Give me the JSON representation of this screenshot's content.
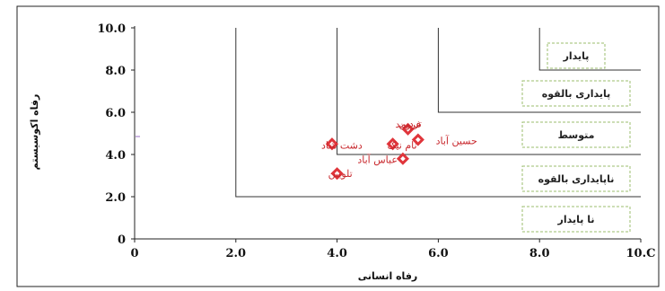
{
  "chart_data": {
    "type": "scatter",
    "xlabel": "رفاه انسانی",
    "ylabel": "رفاه اکوسیستم",
    "xlim": [
      0,
      10
    ],
    "ylim": [
      0,
      10
    ],
    "x_ticks": [
      "0",
      "2.0",
      "4.0",
      "6.0",
      "8.0",
      "10.C"
    ],
    "y_ticks": [
      "0",
      "2.0",
      "4.0",
      "6.0",
      "8.0",
      "10.0"
    ],
    "grid": false,
    "marker_color": "#e0353b",
    "label_color": "#c8282d",
    "zones": [
      {
        "label": "پایدار",
        "corner": [
          8,
          8
        ]
      },
      {
        "label": "پایداری بالقوه",
        "corner": [
          6,
          6
        ]
      },
      {
        "label": "متوسط",
        "corner": [
          4,
          4
        ]
      },
      {
        "label": "ناپایداری بالقوه",
        "corner": [
          2,
          2
        ]
      },
      {
        "label": "نا پایدار",
        "corner": [
          0,
          0
        ]
      }
    ],
    "points": [
      {
        "label": "فرومد",
        "x": 5.4,
        "y": 5.2
      },
      {
        "label": "تردین",
        "x": 5.6,
        "y": 4.7
      },
      {
        "label": "حسین آباد",
        "x": 5.1,
        "y": 4.5
      },
      {
        "label": "نام نیک",
        "x": 5.1,
        "y": 4.5
      },
      {
        "label": "دشت شاد",
        "x": 3.9,
        "y": 4.5
      },
      {
        "label": "عباس آباد",
        "x": 5.3,
        "y": 3.8
      },
      {
        "label": "تلویین",
        "x": 4.0,
        "y": 3.1
      }
    ]
  }
}
